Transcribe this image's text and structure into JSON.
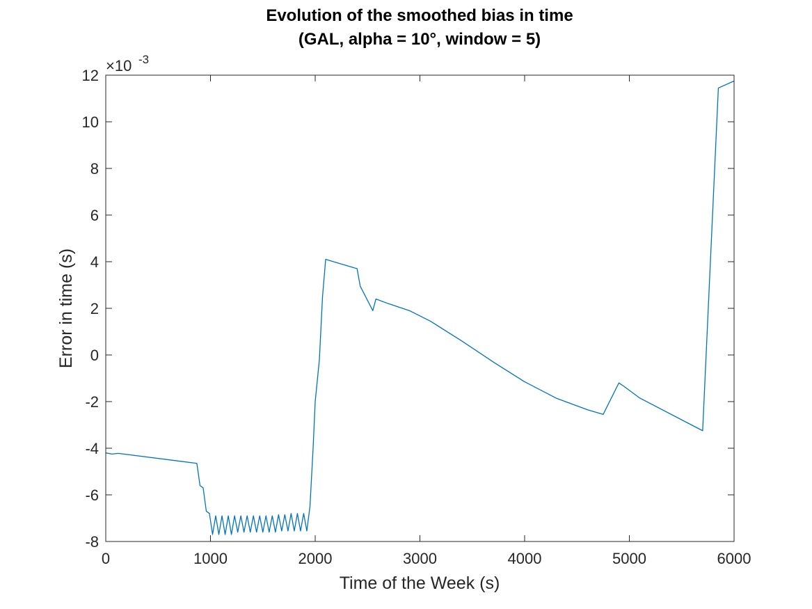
{
  "chart_data": {
    "type": "line",
    "title": "Evolution of the smoothed bias in time",
    "subtitle": "(GAL, alpha = 10°, window = 5)",
    "xlabel": "Time of the Week (s)",
    "ylabel": "Error in time (s)",
    "y_exponent_multiplier": "×10",
    "y_exponent_power": "-3",
    "xlim": [
      0,
      6000
    ],
    "ylim": [
      -8,
      12
    ],
    "y_scale_note": "values in units of 1e-3 s",
    "x_ticks": [
      0,
      1000,
      2000,
      3000,
      4000,
      5000,
      6000
    ],
    "x_tick_labels": [
      "0",
      "1000",
      "2000",
      "3000",
      "4000",
      "5000",
      "6000"
    ],
    "y_ticks": [
      -8,
      -6,
      -4,
      -2,
      0,
      2,
      4,
      6,
      8,
      10,
      12
    ],
    "y_tick_labels": [
      "-8",
      "-6",
      "-4",
      "-2",
      "0",
      "2",
      "4",
      "6",
      "8",
      "10",
      "12"
    ],
    "grid": false,
    "series": [
      {
        "name": "smoothed bias",
        "color": "#0072BD",
        "x": [
          0,
          60,
          120,
          870,
          900,
          930,
          960,
          990,
          1020,
          1050,
          1080,
          1110,
          1140,
          1170,
          1200,
          1230,
          1260,
          1290,
          1320,
          1350,
          1380,
          1410,
          1440,
          1470,
          1500,
          1530,
          1560,
          1590,
          1620,
          1650,
          1680,
          1710,
          1740,
          1770,
          1800,
          1830,
          1860,
          1890,
          1920,
          1950,
          1980,
          2000,
          2040,
          2070,
          2100,
          2400,
          2430,
          2550,
          2580,
          2700,
          2900,
          3100,
          3400,
          3700,
          4000,
          4300,
          4600,
          4750,
          4900,
          4950,
          5100,
          5700,
          5850,
          6000
        ],
        "values": [
          -4.2,
          -4.25,
          -4.22,
          -4.65,
          -5.6,
          -5.7,
          -6.7,
          -6.8,
          -7.7,
          -6.9,
          -7.7,
          -6.9,
          -7.7,
          -6.9,
          -7.7,
          -6.9,
          -7.6,
          -6.9,
          -7.6,
          -6.9,
          -7.6,
          -6.9,
          -7.6,
          -6.9,
          -7.6,
          -6.9,
          -7.6,
          -6.9,
          -7.6,
          -6.85,
          -7.55,
          -6.85,
          -7.55,
          -6.8,
          -7.55,
          -6.8,
          -7.55,
          -6.8,
          -7.55,
          -6.5,
          -4.0,
          -2.0,
          -0.2,
          2.5,
          4.1,
          3.7,
          2.95,
          1.9,
          2.4,
          2.2,
          1.9,
          1.45,
          0.6,
          -0.3,
          -1.15,
          -1.85,
          -2.35,
          -2.55,
          -1.2,
          -1.35,
          -1.85,
          -3.25,
          11.45,
          11.75
        ]
      }
    ]
  }
}
